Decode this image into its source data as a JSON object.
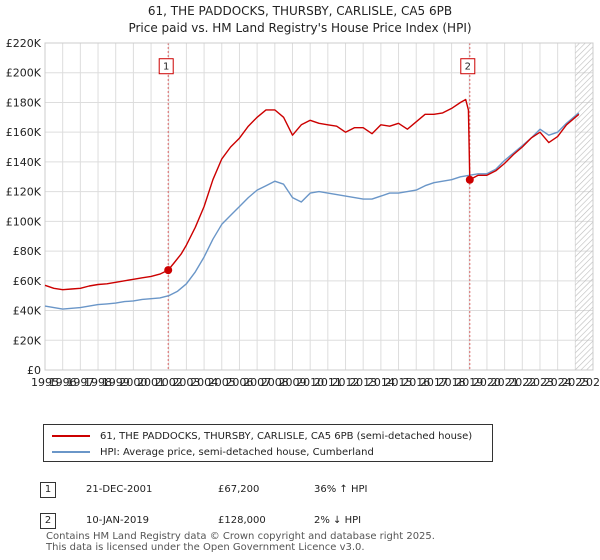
{
  "header": {
    "title": "61, THE PADDOCKS, THURSBY, CARLISLE, CA5 6PB",
    "subtitle": "Price paid vs. HM Land Registry's House Price Index (HPI)"
  },
  "chart_data": {
    "type": "line",
    "title": "61, THE PADDOCKS, THURSBY, CARLISLE, CA5 6PB",
    "subtitle": "Price paid vs. HM Land Registry's House Price Index (HPI)",
    "xlim": [
      1995,
      2026
    ],
    "ylim": [
      0,
      220000
    ],
    "x_ticks": [
      1995,
      1996,
      1997,
      1998,
      1999,
      2000,
      2001,
      2002,
      2003,
      2004,
      2005,
      2006,
      2007,
      2008,
      2009,
      2010,
      2011,
      2012,
      2013,
      2014,
      2015,
      2016,
      2017,
      2018,
      2019,
      2020,
      2021,
      2022,
      2023,
      2024,
      2025,
      2026
    ],
    "x_tick_labels": [
      "1995",
      "1996",
      "1997",
      "1998",
      "1999",
      "2000",
      "2001",
      "2002",
      "2003",
      "2004",
      "2005",
      "2006",
      "2007",
      "2008",
      "2009",
      "2010",
      "2011",
      "2012",
      "2013",
      "2014",
      "2015",
      "2016",
      "2017",
      "2018",
      "2019",
      "2020",
      "2021",
      "2022",
      "2023",
      "2024",
      "2025",
      "2026"
    ],
    "y_ticks": [
      0,
      20000,
      40000,
      60000,
      80000,
      100000,
      120000,
      140000,
      160000,
      180000,
      200000,
      220000
    ],
    "y_tick_labels": [
      "£0",
      "£20K",
      "£40K",
      "£60K",
      "£80K",
      "£100K",
      "£120K",
      "£140K",
      "£160K",
      "£180K",
      "£200K",
      "£220K"
    ],
    "grid": true,
    "forecast_start": 2025.0,
    "series": [
      {
        "name": "61, THE PADDOCKS, THURSBY, CARLISLE, CA5 6PB (semi-detached house)",
        "color": "#cc0000",
        "points": [
          [
            1995.0,
            57000
          ],
          [
            1995.5,
            55000
          ],
          [
            1996.0,
            54000
          ],
          [
            1996.5,
            54500
          ],
          [
            1997.0,
            55000
          ],
          [
            1997.5,
            56500
          ],
          [
            1998.0,
            57500
          ],
          [
            1998.5,
            58000
          ],
          [
            1999.0,
            59000
          ],
          [
            1999.5,
            60000
          ],
          [
            2000.0,
            61000
          ],
          [
            2000.5,
            62000
          ],
          [
            2001.0,
            63000
          ],
          [
            2001.5,
            64500
          ],
          [
            2001.97,
            67200
          ],
          [
            2002.3,
            72000
          ],
          [
            2002.7,
            78000
          ],
          [
            2003.0,
            84000
          ],
          [
            2003.5,
            96000
          ],
          [
            2004.0,
            110000
          ],
          [
            2004.5,
            128000
          ],
          [
            2005.0,
            142000
          ],
          [
            2005.5,
            150000
          ],
          [
            2006.0,
            156000
          ],
          [
            2006.5,
            164000
          ],
          [
            2007.0,
            170000
          ],
          [
            2007.5,
            175000
          ],
          [
            2008.0,
            175000
          ],
          [
            2008.5,
            170000
          ],
          [
            2009.0,
            158000
          ],
          [
            2009.5,
            165000
          ],
          [
            2010.0,
            168000
          ],
          [
            2010.5,
            166000
          ],
          [
            2011.0,
            165000
          ],
          [
            2011.5,
            164000
          ],
          [
            2012.0,
            160000
          ],
          [
            2012.5,
            163000
          ],
          [
            2013.0,
            163000
          ],
          [
            2013.5,
            159000
          ],
          [
            2014.0,
            165000
          ],
          [
            2014.5,
            164000
          ],
          [
            2015.0,
            166000
          ],
          [
            2015.5,
            162000
          ],
          [
            2016.0,
            167000
          ],
          [
            2016.5,
            172000
          ],
          [
            2017.0,
            172000
          ],
          [
            2017.5,
            173000
          ],
          [
            2018.0,
            176000
          ],
          [
            2018.5,
            180000
          ],
          [
            2018.8,
            182000
          ],
          [
            2018.95,
            175000
          ],
          [
            2019.03,
            128000
          ],
          [
            2019.5,
            131000
          ],
          [
            2020.0,
            131000
          ],
          [
            2020.5,
            134000
          ],
          [
            2021.0,
            139000
          ],
          [
            2021.5,
            145000
          ],
          [
            2022.0,
            150000
          ],
          [
            2022.5,
            156000
          ],
          [
            2023.0,
            160000
          ],
          [
            2023.5,
            153000
          ],
          [
            2024.0,
            157000
          ],
          [
            2024.5,
            165000
          ],
          [
            2025.0,
            170000
          ],
          [
            2025.2,
            172000
          ]
        ]
      },
      {
        "name": "HPI: Average price, semi-detached house, Cumberland",
        "color": "#6a96c8",
        "points": [
          [
            1995.0,
            43000
          ],
          [
            1995.5,
            42000
          ],
          [
            1996.0,
            41000
          ],
          [
            1996.5,
            41500
          ],
          [
            1997.0,
            42000
          ],
          [
            1997.5,
            43000
          ],
          [
            1998.0,
            44000
          ],
          [
            1998.5,
            44500
          ],
          [
            1999.0,
            45000
          ],
          [
            1999.5,
            46000
          ],
          [
            2000.0,
            46500
          ],
          [
            2000.5,
            47500
          ],
          [
            2001.0,
            48000
          ],
          [
            2001.5,
            48500
          ],
          [
            2002.0,
            50000
          ],
          [
            2002.5,
            53000
          ],
          [
            2003.0,
            58000
          ],
          [
            2003.5,
            66000
          ],
          [
            2004.0,
            76000
          ],
          [
            2004.5,
            88000
          ],
          [
            2005.0,
            98000
          ],
          [
            2005.5,
            104000
          ],
          [
            2006.0,
            110000
          ],
          [
            2006.5,
            116000
          ],
          [
            2007.0,
            121000
          ],
          [
            2007.5,
            124000
          ],
          [
            2008.0,
            127000
          ],
          [
            2008.5,
            125000
          ],
          [
            2009.0,
            116000
          ],
          [
            2009.5,
            113000
          ],
          [
            2010.0,
            119000
          ],
          [
            2010.5,
            120000
          ],
          [
            2011.0,
            119000
          ],
          [
            2011.5,
            118000
          ],
          [
            2012.0,
            117000
          ],
          [
            2012.5,
            116000
          ],
          [
            2013.0,
            115000
          ],
          [
            2013.5,
            115000
          ],
          [
            2014.0,
            117000
          ],
          [
            2014.5,
            119000
          ],
          [
            2015.0,
            119000
          ],
          [
            2015.5,
            120000
          ],
          [
            2016.0,
            121000
          ],
          [
            2016.5,
            124000
          ],
          [
            2017.0,
            126000
          ],
          [
            2017.5,
            127000
          ],
          [
            2018.0,
            128000
          ],
          [
            2018.5,
            130000
          ],
          [
            2019.0,
            131000
          ],
          [
            2019.5,
            132000
          ],
          [
            2020.0,
            132000
          ],
          [
            2020.5,
            135000
          ],
          [
            2021.0,
            141000
          ],
          [
            2021.5,
            146000
          ],
          [
            2022.0,
            151000
          ],
          [
            2022.5,
            156000
          ],
          [
            2023.0,
            162000
          ],
          [
            2023.5,
            158000
          ],
          [
            2024.0,
            160000
          ],
          [
            2024.5,
            166000
          ],
          [
            2025.0,
            171000
          ],
          [
            2025.2,
            173000
          ]
        ]
      }
    ],
    "markers": [
      {
        "label": "1",
        "x": 2001.97,
        "y": 67200
      },
      {
        "label": "2",
        "x": 2019.03,
        "y": 128000
      }
    ]
  },
  "legend": {
    "items": [
      {
        "label": "61, THE PADDOCKS, THURSBY, CARLISLE, CA5 6PB (semi-detached house)",
        "color": "#cc0000"
      },
      {
        "label": "HPI: Average price, semi-detached house, Cumberland",
        "color": "#6a96c8"
      }
    ]
  },
  "transactions": [
    {
      "num": "1",
      "date": "21-DEC-2001",
      "price": "£67,200",
      "hpi": "36% ↑ HPI"
    },
    {
      "num": "2",
      "date": "10-JAN-2019",
      "price": "£128,000",
      "hpi": "2% ↓ HPI"
    }
  ],
  "footer": {
    "line1": "Contains HM Land Registry data © Crown copyright and database right 2025.",
    "line2": "This data is licensed under the Open Government Licence v3.0."
  }
}
